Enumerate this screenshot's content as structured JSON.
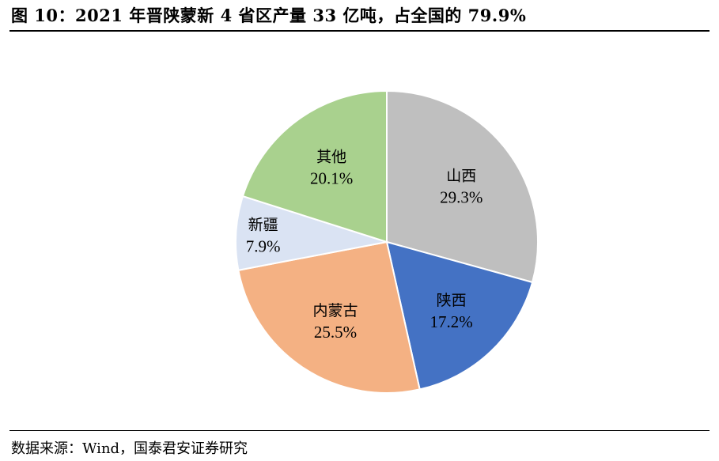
{
  "title": "图 10：2021 年晋陕蒙新 4 省区产量 33 亿吨，占全国的 79.9%",
  "source": "数据来源：Wind，国泰君安证券研究",
  "chart_data": {
    "type": "pie",
    "title": "",
    "slices": [
      {
        "name": "山西",
        "value": 29.3,
        "label": "29.3%",
        "color": "#bfbfbf"
      },
      {
        "name": "陕西",
        "value": 17.2,
        "label": "17.2%",
        "color": "#4472c4"
      },
      {
        "name": "内蒙古",
        "value": 25.5,
        "label": "25.5%",
        "color": "#f4b183"
      },
      {
        "name": "新疆",
        "value": 7.9,
        "label": "7.9%",
        "color": "#dae3f3"
      },
      {
        "name": "其他",
        "value": 20.1,
        "label": "20.1%",
        "color": "#a9d18e"
      }
    ],
    "start_angle": "12 o'clock",
    "direction": "clockwise",
    "legend": "none"
  }
}
